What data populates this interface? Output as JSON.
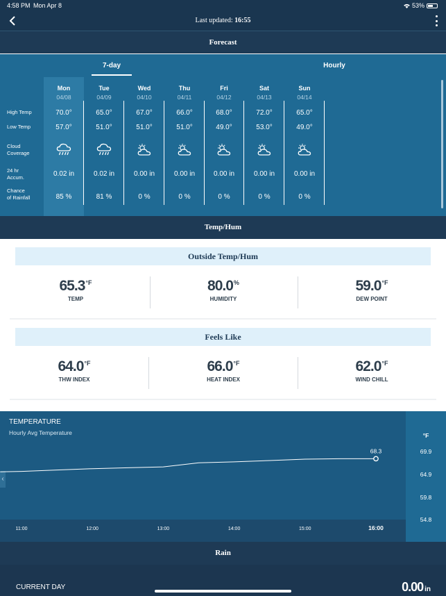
{
  "status_bar": {
    "time": "4:58 PM",
    "date": "Mon Apr 8",
    "battery": "53%"
  },
  "header": {
    "updated_label": "Last updated:",
    "updated_time": "16:55"
  },
  "forecast_title": "Forecast",
  "tabs": [
    {
      "label": "7-day",
      "active": true
    },
    {
      "label": "Hourly",
      "active": false
    }
  ],
  "row_labels": {
    "high": "High Temp",
    "low": "Low Temp",
    "cloud_l1": "Cloud",
    "cloud_l2": "Coverage",
    "accum_l1": "24 hr",
    "accum_l2": "Accum.",
    "rain_l1": "Chance",
    "rain_l2": "of Rainfall"
  },
  "days": [
    {
      "name": "Mon",
      "date": "04/08",
      "high": "70.0°",
      "low": "57.0°",
      "icon": "rain-cloud-icon",
      "accum": "0.02 in",
      "chance": "85 %"
    },
    {
      "name": "Tue",
      "date": "04/09",
      "high": "65.0°",
      "low": "51.0°",
      "icon": "rain-cloud-icon",
      "accum": "0.02 in",
      "chance": "81 %"
    },
    {
      "name": "Wed",
      "date": "04/10",
      "high": "67.0°",
      "low": "51.0°",
      "icon": "partly-cloudy-icon",
      "accum": "0.00 in",
      "chance": "0 %"
    },
    {
      "name": "Thu",
      "date": "04/11",
      "high": "66.0°",
      "low": "51.0°",
      "icon": "partly-cloudy-icon",
      "accum": "0.00 in",
      "chance": "0 %"
    },
    {
      "name": "Fri",
      "date": "04/12",
      "high": "68.0°",
      "low": "49.0°",
      "icon": "partly-cloudy-icon",
      "accum": "0.00 in",
      "chance": "0 %"
    },
    {
      "name": "Sat",
      "date": "04/13",
      "high": "72.0°",
      "low": "53.0°",
      "icon": "partly-cloudy-icon",
      "accum": "0.00 in",
      "chance": "0 %"
    },
    {
      "name": "Sun",
      "date": "04/14",
      "high": "65.0°",
      "low": "49.0°",
      "icon": "partly-cloudy-icon",
      "accum": "0.00 in",
      "chance": "0 %"
    }
  ],
  "temphum_title": "Temp/Hum",
  "outside": {
    "title": "Outside Temp/Hum",
    "temp": {
      "value": "65.3",
      "unit": "°F",
      "label": "TEMP"
    },
    "humidity": {
      "value": "80.0",
      "unit": "%",
      "label": "HUMIDITY"
    },
    "dew": {
      "value": "59.0",
      "unit": "°F",
      "label": "DEW POINT"
    }
  },
  "feels": {
    "title": "Feels Like",
    "thw": {
      "value": "64.0",
      "unit": "°F",
      "label": "THW INDEX"
    },
    "heat": {
      "value": "66.0",
      "unit": "°F",
      "label": "HEAT INDEX"
    },
    "chill": {
      "value": "62.0",
      "unit": "°F",
      "label": "WIND CHILL"
    }
  },
  "chart_data": {
    "type": "line",
    "title": "TEMPERATURE",
    "subtitle": "Hourly Avg Temperature",
    "y_unit": "°F",
    "y_ticks": [
      "69.9",
      "64.9",
      "59.8",
      "54.8"
    ],
    "ylim": [
      54.8,
      69.9
    ],
    "x_ticks": [
      "11:00",
      "12:00",
      "13:00",
      "14:00",
      "15:00",
      "16:00"
    ],
    "x": [
      10.7,
      11,
      11.5,
      12,
      12.5,
      13,
      13.5,
      14,
      14.5,
      15,
      15.5,
      16
    ],
    "values": [
      65.4,
      65.5,
      65.8,
      66.1,
      66.3,
      66.5,
      67.4,
      67.6,
      67.9,
      68.2,
      68.3,
      68.3
    ],
    "last_label": "68.3",
    "grid": false
  },
  "rain": {
    "title": "Rain",
    "current_label": "CURRENT DAY",
    "value": "0.00",
    "unit": "in"
  },
  "colors": {
    "dark": "#1a3650",
    "tab_blue": "#1f6a94",
    "chart_bg": "#1c5a82",
    "card_title_bg": "#dff0fa"
  }
}
